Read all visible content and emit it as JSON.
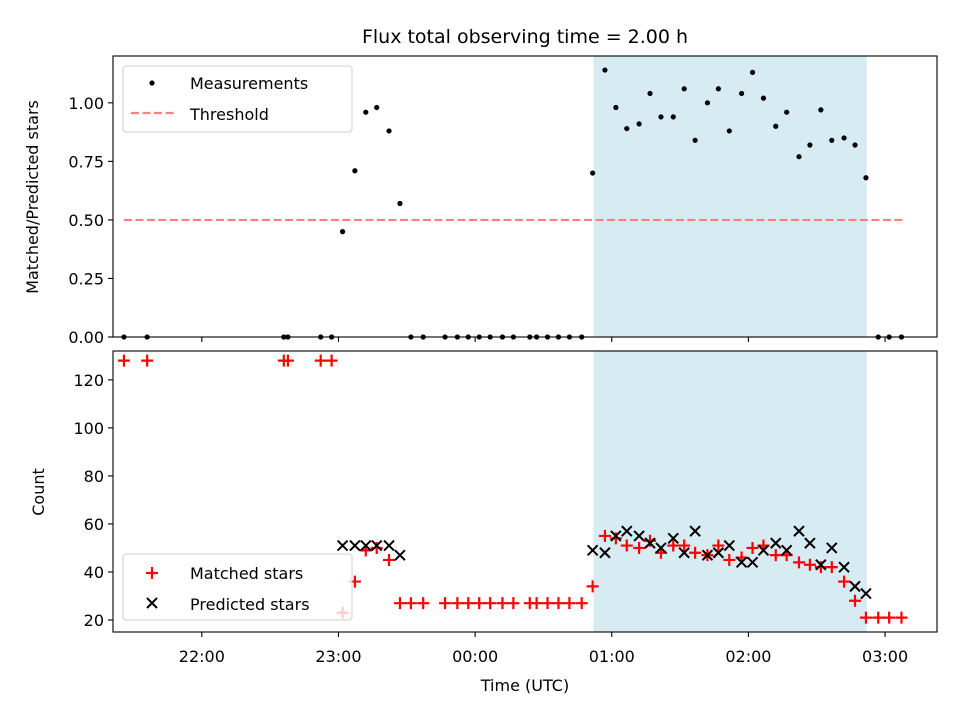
{
  "chart_data": {
    "title": "Flux total observing time = 2.00 h",
    "x_unit": "hours relative to 00:00 UTC (negative = previous day)",
    "xlim": [
      -2.65,
      3.38
    ],
    "xlabel": "Time (UTC)",
    "x_ticks": [
      {
        "value": -2,
        "label": "22:00"
      },
      {
        "value": -1,
        "label": "23:00"
      },
      {
        "value": 0,
        "label": "00:00"
      },
      {
        "value": 1,
        "label": "01:00"
      },
      {
        "value": 2,
        "label": "02:00"
      },
      {
        "value": 3,
        "label": "03:00"
      }
    ],
    "highlight_span": {
      "start": 0.866,
      "end": 2.866,
      "color": "#add8e6"
    },
    "colors": {
      "measurements": "#000000",
      "threshold": "#ff7f7f",
      "matched": "#ff0000",
      "predicted": "#000000",
      "span": "#add8e6"
    },
    "panels": [
      {
        "type": "scatter",
        "ylabel": "Matched/Predicted stars",
        "ylim": [
          0,
          1.2
        ],
        "y_ticks": [
          "0.00",
          "0.25",
          "0.50",
          "0.75",
          "1.00"
        ],
        "y_tick_values": [
          0,
          0.25,
          0.5,
          0.75,
          1.0
        ],
        "legend": {
          "position": "upper-left",
          "entries": [
            "Measurements",
            "Threshold"
          ]
        },
        "threshold": {
          "name": "Threshold",
          "y": 0.5,
          "x_range": [
            -2.57,
            3.13
          ]
        },
        "series": [
          {
            "name": "Measurements",
            "points": [
              [
                -2.57,
                0
              ],
              [
                -2.4,
                0
              ],
              [
                -1.4,
                0
              ],
              [
                -1.37,
                0
              ],
              [
                -1.13,
                0
              ],
              [
                -1.05,
                0
              ],
              [
                -0.97,
                0.45
              ],
              [
                -0.88,
                0.71
              ],
              [
                -0.8,
                0.96
              ],
              [
                -0.72,
                0.98
              ],
              [
                -0.63,
                0.88
              ],
              [
                -0.55,
                0.57
              ],
              [
                -0.47,
                0
              ],
              [
                -0.38,
                0
              ],
              [
                -0.22,
                0
              ],
              [
                -0.13,
                0
              ],
              [
                -0.05,
                0
              ],
              [
                0.03,
                0
              ],
              [
                0.11,
                0
              ],
              [
                0.2,
                0
              ],
              [
                0.28,
                0
              ],
              [
                0.4,
                0
              ],
              [
                0.45,
                0
              ],
              [
                0.53,
                0
              ],
              [
                0.61,
                0
              ],
              [
                0.69,
                0
              ],
              [
                0.78,
                0
              ],
              [
                0.86,
                0.7
              ],
              [
                0.95,
                1.14
              ],
              [
                1.03,
                0.98
              ],
              [
                1.11,
                0.89
              ],
              [
                1.2,
                0.91
              ],
              [
                1.28,
                1.04
              ],
              [
                1.36,
                0.94
              ],
              [
                1.45,
                0.94
              ],
              [
                1.53,
                1.06
              ],
              [
                1.61,
                0.84
              ],
              [
                1.7,
                1.0
              ],
              [
                1.78,
                1.06
              ],
              [
                1.86,
                0.88
              ],
              [
                1.95,
                1.04
              ],
              [
                2.03,
                1.13
              ],
              [
                2.11,
                1.02
              ],
              [
                2.2,
                0.9
              ],
              [
                2.28,
                0.96
              ],
              [
                2.37,
                0.77
              ],
              [
                2.45,
                0.82
              ],
              [
                2.53,
                0.97
              ],
              [
                2.61,
                0.84
              ],
              [
                2.7,
                0.85
              ],
              [
                2.78,
                0.82
              ],
              [
                2.86,
                0.68
              ],
              [
                2.95,
                0
              ],
              [
                3.03,
                0
              ],
              [
                3.12,
                0
              ]
            ]
          }
        ]
      },
      {
        "type": "scatter",
        "ylabel": "Count",
        "ylim": [
          15,
          132
        ],
        "y_ticks": [
          "20",
          "40",
          "60",
          "80",
          "100",
          "120"
        ],
        "y_tick_values": [
          20,
          40,
          60,
          80,
          100,
          120
        ],
        "legend": {
          "position": "lower-left",
          "entries": [
            "Matched stars",
            "Predicted stars"
          ]
        },
        "series": [
          {
            "name": "Matched stars",
            "marker": "+",
            "points": [
              [
                -2.57,
                128
              ],
              [
                -2.4,
                128
              ],
              [
                -1.4,
                128
              ],
              [
                -1.37,
                128
              ],
              [
                -1.13,
                128
              ],
              [
                -1.05,
                128
              ],
              [
                -0.97,
                23
              ],
              [
                -0.88,
                36
              ],
              [
                -0.8,
                49
              ],
              [
                -0.72,
                50
              ],
              [
                -0.63,
                45
              ],
              [
                -0.55,
                27
              ],
              [
                -0.47,
                27
              ],
              [
                -0.38,
                27
              ],
              [
                -0.22,
                27
              ],
              [
                -0.13,
                27
              ],
              [
                -0.05,
                27
              ],
              [
                0.03,
                27
              ],
              [
                0.11,
                27
              ],
              [
                0.2,
                27
              ],
              [
                0.28,
                27
              ],
              [
                0.4,
                27
              ],
              [
                0.45,
                27
              ],
              [
                0.53,
                27
              ],
              [
                0.61,
                27
              ],
              [
                0.69,
                27
              ],
              [
                0.78,
                27
              ],
              [
                0.86,
                34
              ],
              [
                0.95,
                55
              ],
              [
                1.03,
                54
              ],
              [
                1.11,
                51
              ],
              [
                1.2,
                50
              ],
              [
                1.28,
                53
              ],
              [
                1.36,
                48
              ],
              [
                1.45,
                51
              ],
              [
                1.53,
                51
              ],
              [
                1.61,
                48
              ],
              [
                1.7,
                47
              ],
              [
                1.78,
                51
              ],
              [
                1.86,
                45
              ],
              [
                1.95,
                46
              ],
              [
                2.03,
                50
              ],
              [
                2.11,
                51
              ],
              [
                2.2,
                47
              ],
              [
                2.28,
                47
              ],
              [
                2.37,
                44
              ],
              [
                2.45,
                43
              ],
              [
                2.53,
                42
              ],
              [
                2.61,
                42
              ],
              [
                2.7,
                36
              ],
              [
                2.78,
                28
              ],
              [
                2.86,
                21
              ],
              [
                2.95,
                21
              ],
              [
                3.03,
                21
              ],
              [
                3.12,
                21
              ]
            ]
          },
          {
            "name": "Predicted stars",
            "marker": "x",
            "points": [
              [
                -0.97,
                51
              ],
              [
                -0.88,
                51
              ],
              [
                -0.8,
                51
              ],
              [
                -0.72,
                51
              ],
              [
                -0.63,
                51
              ],
              [
                -0.55,
                47
              ],
              [
                0.86,
                49
              ],
              [
                0.95,
                48
              ],
              [
                1.03,
                55
              ],
              [
                1.11,
                57
              ],
              [
                1.2,
                55
              ],
              [
                1.28,
                52
              ],
              [
                1.36,
                50
              ],
              [
                1.45,
                54
              ],
              [
                1.53,
                48
              ],
              [
                1.61,
                57
              ],
              [
                1.7,
                47
              ],
              [
                1.78,
                48
              ],
              [
                1.86,
                51
              ],
              [
                1.95,
                44
              ],
              [
                2.03,
                44
              ],
              [
                2.11,
                49
              ],
              [
                2.2,
                52
              ],
              [
                2.28,
                49
              ],
              [
                2.37,
                57
              ],
              [
                2.45,
                52
              ],
              [
                2.53,
                43
              ],
              [
                2.61,
                50
              ],
              [
                2.7,
                42
              ],
              [
                2.78,
                34
              ],
              [
                2.86,
                31
              ]
            ]
          }
        ]
      }
    ]
  }
}
